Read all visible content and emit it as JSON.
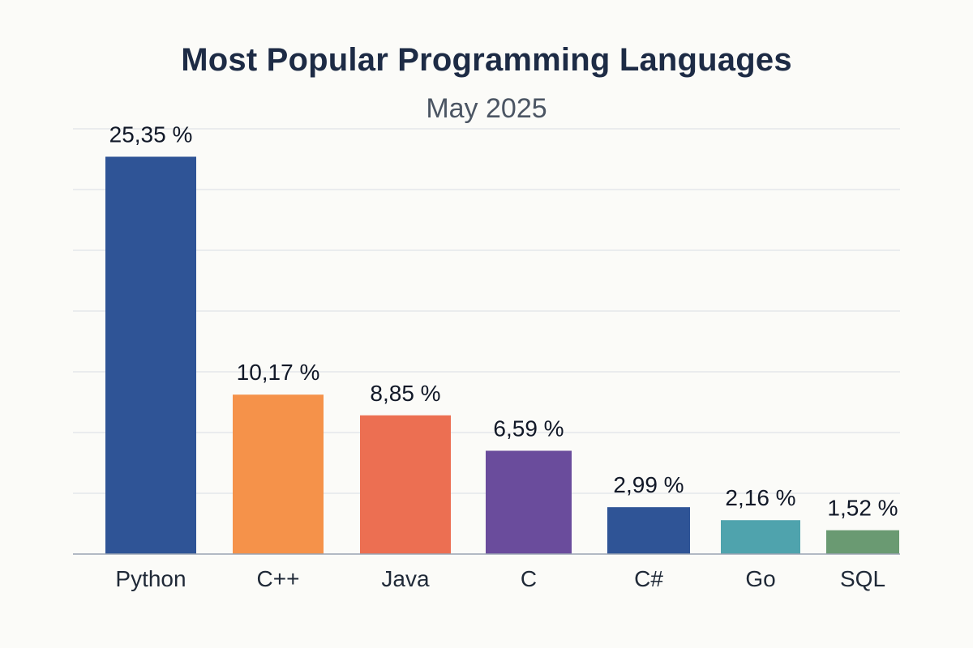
{
  "chart_data": {
    "type": "bar",
    "title": "Most Popular Programming Languages",
    "subtitle": "May 2025",
    "categories": [
      "Python",
      "C++",
      "Java",
      "C",
      "C#",
      "Go",
      "SQL"
    ],
    "values": [
      25.35,
      10.17,
      8.85,
      6.59,
      2.99,
      2.16,
      1.52
    ],
    "value_labels": [
      "25,35 %",
      "10,17 %",
      "8,85 %",
      "6,59 %",
      "2,99 %",
      "2,16 %",
      "1,52 %"
    ],
    "colors": [
      "#2f5496",
      "#f5924a",
      "#ec6f52",
      "#6a4c9c",
      "#2f5496",
      "#4fa3ad",
      "#6a9a72"
    ],
    "grid": true,
    "legend": "none",
    "xlabel": "",
    "ylabel": ""
  }
}
